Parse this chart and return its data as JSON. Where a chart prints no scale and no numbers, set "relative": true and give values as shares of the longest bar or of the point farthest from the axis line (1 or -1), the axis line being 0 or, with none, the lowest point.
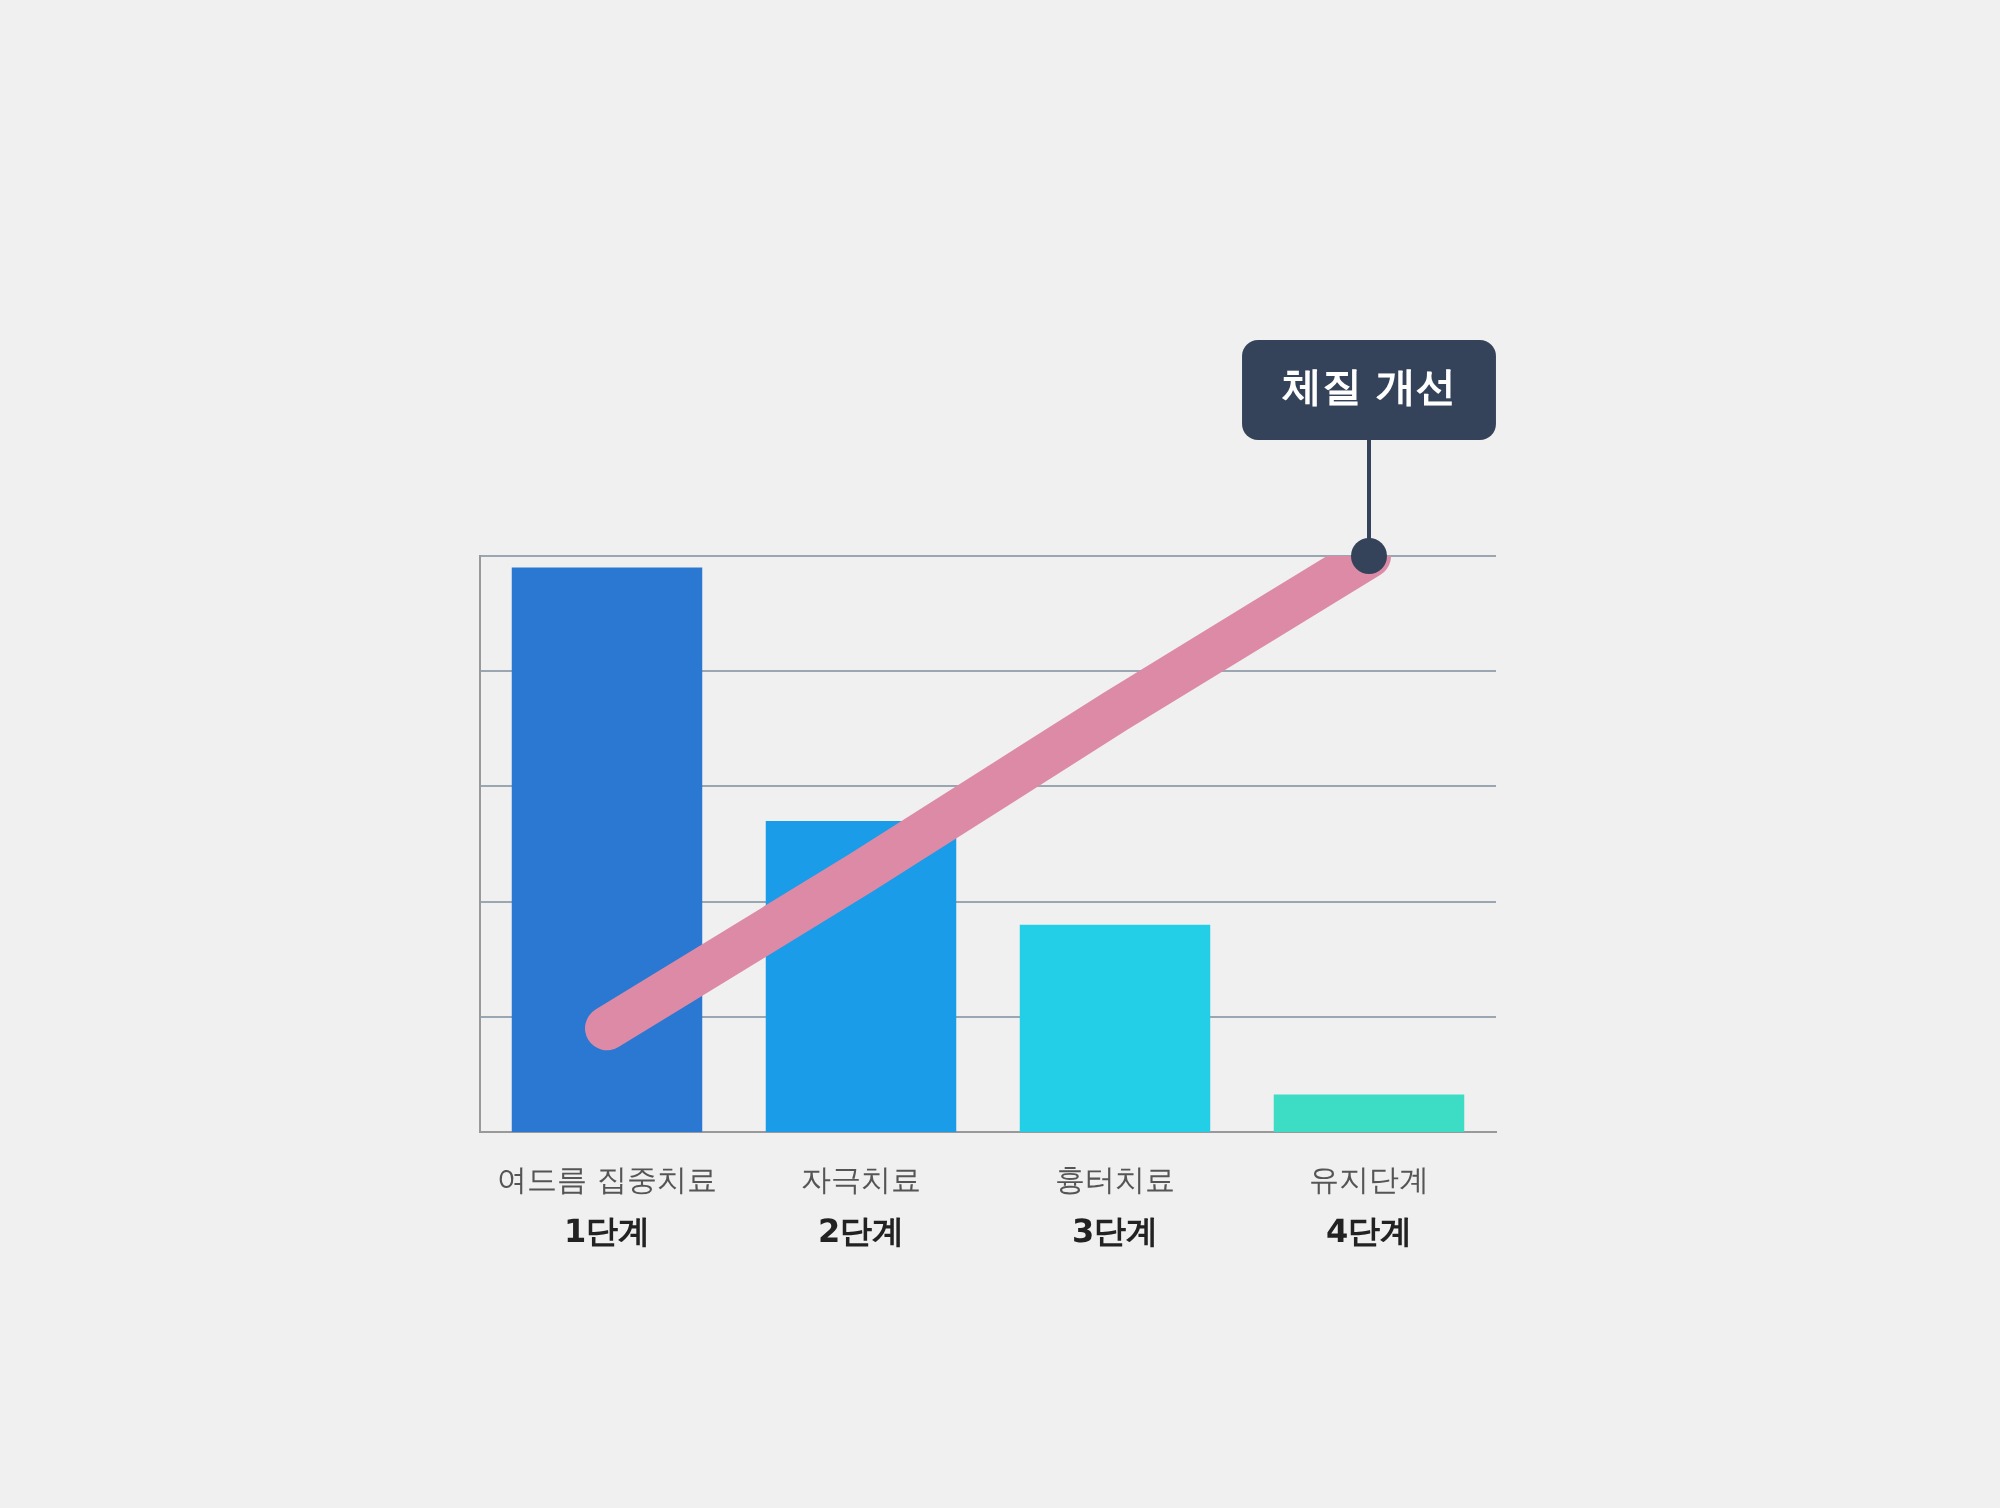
{
  "chart_data": {
    "type": "bar",
    "relative": true,
    "categories": [
      "여드름 집중치료\n1단계",
      "자극치료\n2단계",
      "흉터치료\n3단계",
      "유지단계\n4단계"
    ],
    "series": [
      {
        "colors": [
          "#2a78d2",
          "#1a9ce8",
          "#22cfe6",
          "#3ddcc4"
        ],
        "values": [
          0.98,
          0.54,
          0.36,
          0.065
        ]
      },
      {
        "type": "line",
        "color": "#dc8aa6",
        "values": [
          0.18,
          0.45,
          0.73,
          1
        ]
      }
    ],
    "annotations": [
      {
        "text": "체질 개선",
        "x": "유지단계\n4단계",
        "y": 1
      }
    ],
    "grid": "y",
    "legend": false
  }
}
